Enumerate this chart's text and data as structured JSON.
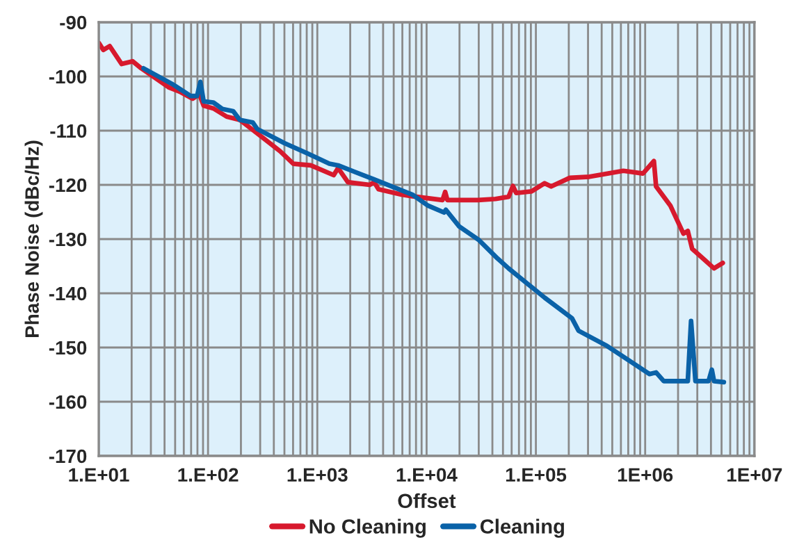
{
  "chart_data": {
    "type": "line",
    "xlabel": "Offset",
    "ylabel": "Phase Noise (dBc/Hz)",
    "log": "x",
    "grid": true,
    "legend": "bottom",
    "line_style": "solid",
    "marker": "none",
    "xlim": [
      10,
      10000000
    ],
    "xticks": [
      {
        "value": 10,
        "label": "1.E+01"
      },
      {
        "value": 100,
        "label": "1.E+02"
      },
      {
        "value": 1000,
        "label": "1.E+03"
      },
      {
        "value": 10000,
        "label": "1.E+04"
      },
      {
        "value": 100000,
        "label": "1.E+05"
      },
      {
        "value": 1000000,
        "label": "1E+06"
      },
      {
        "value": 10000000,
        "label": "1E+07"
      }
    ],
    "ylim": [
      -170,
      -90
    ],
    "yticks": [
      -170,
      -160,
      -150,
      -140,
      -130,
      -120,
      -110,
      -100,
      -90
    ],
    "series": [
      {
        "name": "No Cleaning",
        "color": "#d7192d",
        "x": [
          10,
          11,
          12.6,
          16.2,
          20.4,
          24.5,
          43.6,
          55,
          72.4,
          83.2,
          91.2,
          112,
          148,
          195,
          282,
          457,
          603,
          871,
          1413,
          1549,
          1905,
          3020,
          3311,
          3631,
          5888,
          7413,
          14000,
          14790,
          15500,
          29510,
          42660,
          56230,
          61660,
          66000,
          91200,
          120200,
          138000,
          204200,
          309000,
          631000,
          955000,
          1202000,
          1259000,
          1698000,
          2239000,
          2455000,
          2692000,
          4266000,
          5129000
        ],
        "values": [
          -93.8,
          -95.1,
          -94.4,
          -97.7,
          -97.2,
          -98.5,
          -102,
          -102.8,
          -104.1,
          -103.3,
          -105.4,
          -105.9,
          -107.4,
          -108,
          -110.5,
          -113.8,
          -116.1,
          -116.4,
          -118.2,
          -116.9,
          -119.5,
          -120,
          -119.5,
          -120.8,
          -121.8,
          -122.1,
          -122.8,
          -121.3,
          -122.8,
          -122.8,
          -122.6,
          -122.2,
          -120.2,
          -121.5,
          -121.2,
          -119.7,
          -120.3,
          -118.7,
          -118.5,
          -117.4,
          -117.9,
          -115.6,
          -120.3,
          -123.8,
          -129,
          -128.5,
          -131.8,
          -135.4,
          -134.4
        ]
      },
      {
        "name": "Cleaning",
        "color": "#0a62a8",
        "x": [
          25.7,
          47.9,
          69.2,
          79.4,
          85.1,
          91.2,
          112,
          135,
          170,
          195,
          257,
          282,
          501,
          813,
          1288,
          1549,
          3311,
          7413,
          10230,
          14450,
          15000,
          19950,
          30200,
          44670,
          56230,
          120200,
          213800,
          245500,
          446700,
          1096000,
          1259000,
          1479000,
          2455000,
          2630000,
          2884000,
          3802000,
          4074000,
          4266000,
          5248000
        ],
        "values": [
          -98.5,
          -101.5,
          -103.6,
          -103.6,
          -101,
          -104.6,
          -104.8,
          -106,
          -106.4,
          -108,
          -108.5,
          -109.7,
          -112.3,
          -114.2,
          -116.1,
          -116.4,
          -119,
          -121.8,
          -123.8,
          -125.1,
          -124.6,
          -127.7,
          -130.2,
          -133.6,
          -135.4,
          -140.8,
          -144.6,
          -146.9,
          -149.7,
          -154.9,
          -154.6,
          -156.2,
          -156.2,
          -145.1,
          -156.2,
          -156.2,
          -154.1,
          -156.2,
          -156.4
        ]
      }
    ]
  }
}
